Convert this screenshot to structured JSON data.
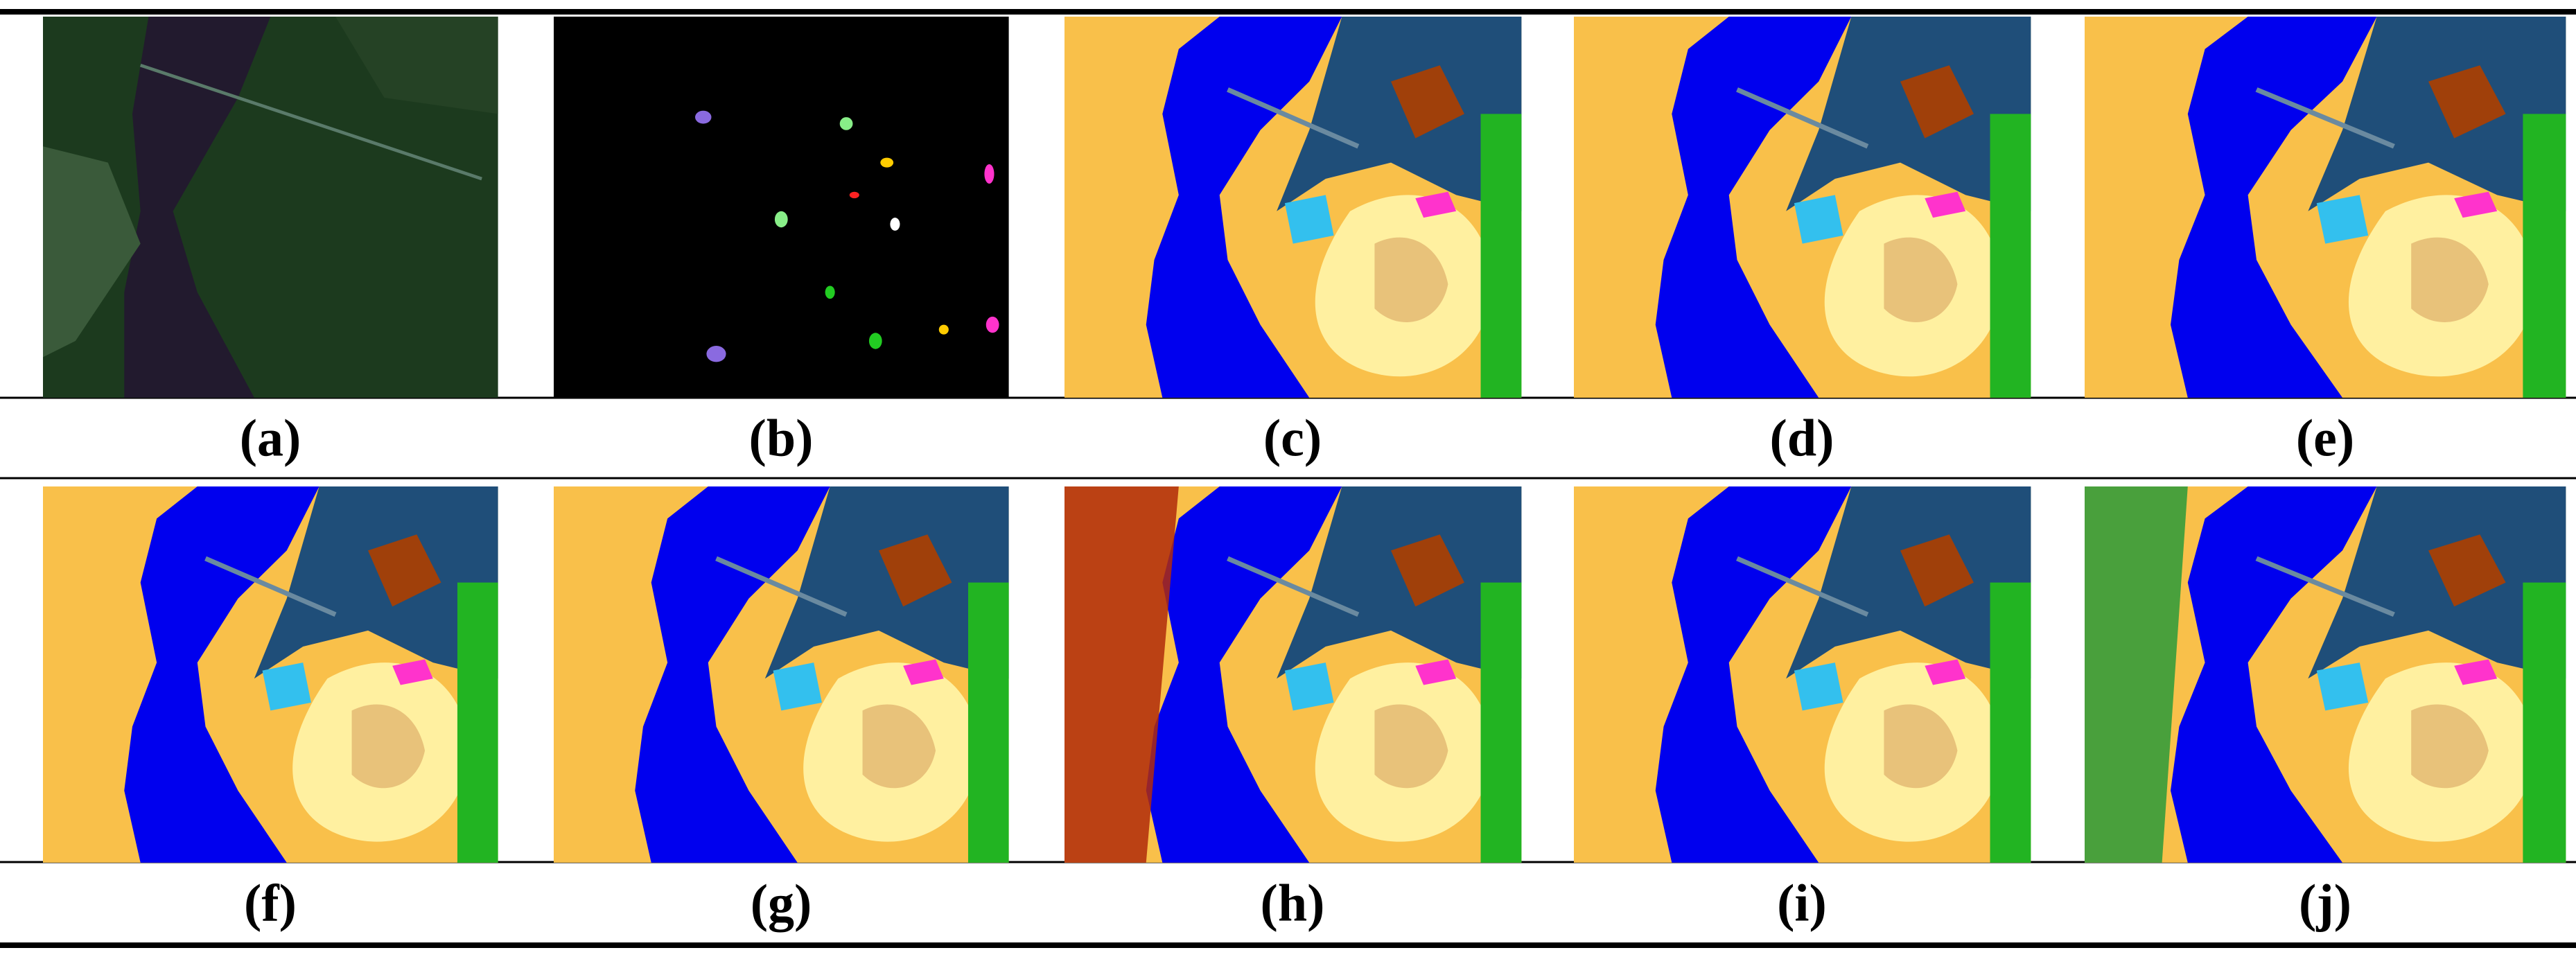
{
  "figure": {
    "labels": [
      "(a)",
      "(b)",
      "(c)",
      "(d)",
      "(e)",
      "(f)",
      "(g)",
      "(h)",
      "(i)",
      "(j)"
    ]
  }
}
